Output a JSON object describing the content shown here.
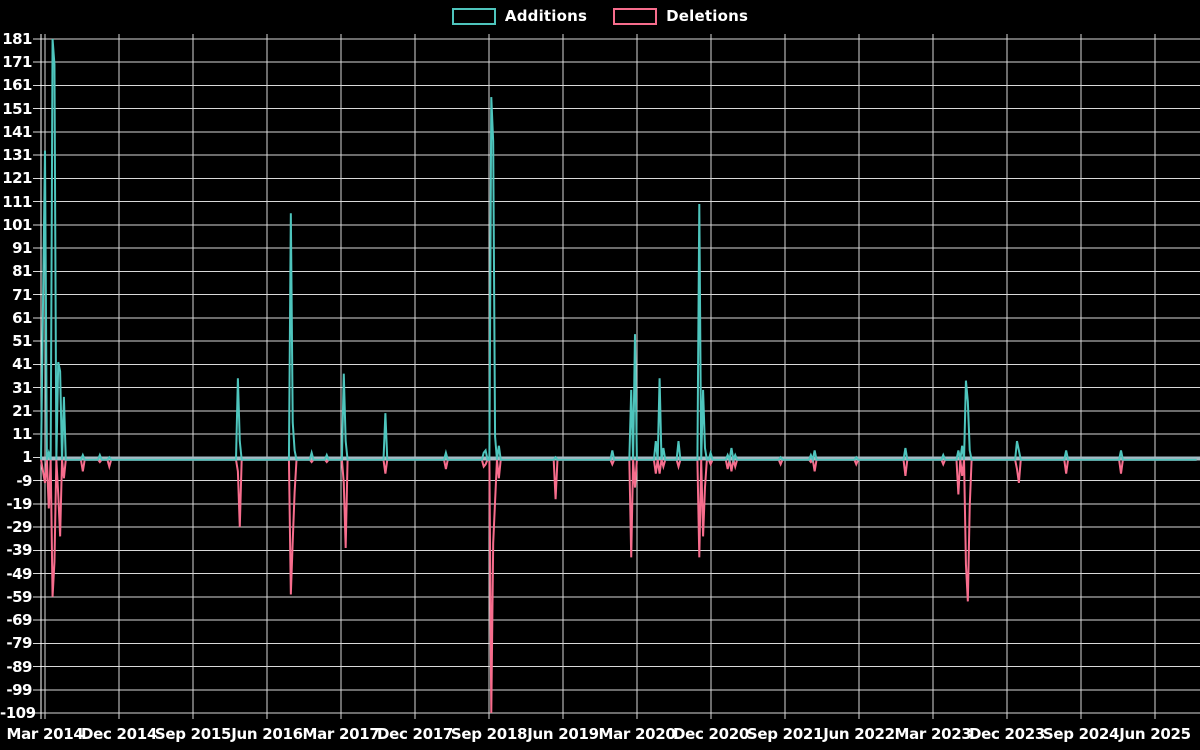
{
  "legend": {
    "items": [
      {
        "label": "Additions",
        "color": "#4EC5BD"
      },
      {
        "label": "Deletions",
        "color": "#F76D8D"
      }
    ]
  },
  "colors": {
    "background": "#000000",
    "additions": "#4EC5BD",
    "deletions": "#F76D8D",
    "gridline": "#D9D9D9",
    "axis": "#FFFFFF",
    "baseline": "#A5BCC6",
    "label_text": "#FFFFFF"
  },
  "chart_data": {
    "type": "line",
    "title": "",
    "xlabel": "",
    "ylabel": "",
    "grid": true,
    "legend_position": "top-center",
    "x_axis": {
      "tick_labels": [
        "Mar 2014",
        "Dec 2014",
        "Sep 2015",
        "Jun 2016",
        "Mar 2017",
        "Dec 2017",
        "Sep 2018",
        "Jun 2019",
        "Mar 2020",
        "Dec 2020",
        "Sep 2021",
        "Jun 2022",
        "Mar 2023",
        "Dec 2023",
        "Sep 2024",
        "Jun 2025"
      ],
      "months_between_ticks": 9,
      "start": "Mar 2014",
      "end": "Jun 2025"
    },
    "y_axis": {
      "min": -109,
      "max": 181,
      "step": 10,
      "tick_labels": [
        "181",
        "171",
        "161",
        "151",
        "141",
        "131",
        "121",
        "111",
        "101",
        "91",
        "81",
        "71",
        "61",
        "51",
        "41",
        "31",
        "21",
        "11",
        "1",
        "-9",
        "-19",
        "-29",
        "-39",
        "-49",
        "-59",
        "-69",
        "-79",
        "-89",
        "-99",
        "-109"
      ]
    },
    "series": [
      {
        "name": "Additions",
        "color": "#4EC5BD",
        "sign": "positive"
      },
      {
        "name": "Deletions",
        "color": "#F76D8D",
        "sign": "negative"
      }
    ],
    "resolution": "weekly",
    "weeks_total": 610,
    "baseline_value": 0,
    "spikes": [
      {
        "week": 0,
        "approx_date": "Mar 2014",
        "additions": 133,
        "deletions": -10
      },
      {
        "week": 2,
        "approx_date": "Mar 2014",
        "additions": 3,
        "deletions": -21
      },
      {
        "week": 4,
        "approx_date": "Apr 2014",
        "additions": 181,
        "deletions": -59
      },
      {
        "week": 5,
        "approx_date": "Apr 2014",
        "additions": 170,
        "deletions": -44
      },
      {
        "week": 7,
        "approx_date": "Apr 2014",
        "additions": 42,
        "deletions": -15
      },
      {
        "week": 8,
        "approx_date": "May 2014",
        "additions": 38,
        "deletions": -33
      },
      {
        "week": 10,
        "approx_date": "May 2014",
        "additions": 27,
        "deletions": -8
      },
      {
        "week": 20,
        "approx_date": "Jul 2014",
        "additions": 2,
        "deletions": -5
      },
      {
        "week": 29,
        "approx_date": "Sep 2014",
        "additions": 2,
        "deletions": -1
      },
      {
        "week": 34,
        "approx_date": "Nov 2014",
        "additions": 1,
        "deletions": -3
      },
      {
        "week": 102,
        "approx_date": "Feb 2016",
        "additions": 35,
        "deletions": -5
      },
      {
        "week": 103,
        "approx_date": "Mar 2016",
        "additions": 8,
        "deletions": -29
      },
      {
        "week": 130,
        "approx_date": "Sep 2016",
        "additions": 106,
        "deletions": -58
      },
      {
        "week": 131,
        "approx_date": "Sep 2016",
        "additions": 16,
        "deletions": -35
      },
      {
        "week": 132,
        "approx_date": "Sep 2016",
        "additions": 4,
        "deletions": -14
      },
      {
        "week": 141,
        "approx_date": "Nov 2016",
        "additions": 3,
        "deletions": -1
      },
      {
        "week": 149,
        "approx_date": "Jan 2017",
        "additions": 2,
        "deletions": -1
      },
      {
        "week": 158,
        "approx_date": "Mar 2017",
        "additions": 37,
        "deletions": -10
      },
      {
        "week": 159,
        "approx_date": "Mar 2017",
        "additions": 8,
        "deletions": -38
      },
      {
        "week": 180,
        "approx_date": "Aug 2017",
        "additions": 20,
        "deletions": -6
      },
      {
        "week": 212,
        "approx_date": "Apr 2018",
        "additions": 3,
        "deletions": -4
      },
      {
        "week": 232,
        "approx_date": "Aug 2018",
        "additions": 3,
        "deletions": -3
      },
      {
        "week": 233,
        "approx_date": "Aug 2018",
        "additions": 4,
        "deletions": -2
      },
      {
        "week": 236,
        "approx_date": "Sep 2018",
        "additions": 156,
        "deletions": -109
      },
      {
        "week": 237,
        "approx_date": "Sep 2018",
        "additions": 137,
        "deletions": -36
      },
      {
        "week": 238,
        "approx_date": "Sep 2018",
        "additions": 10,
        "deletions": -18
      },
      {
        "week": 240,
        "approx_date": "Oct 2018",
        "additions": 6,
        "deletions": -8
      },
      {
        "week": 270,
        "approx_date": "Apr 2019",
        "additions": 1,
        "deletions": -17
      },
      {
        "week": 300,
        "approx_date": "Nov 2019",
        "additions": 4,
        "deletions": -2
      },
      {
        "week": 310,
        "approx_date": "Feb 2020",
        "additions": 30,
        "deletions": -42
      },
      {
        "week": 312,
        "approx_date": "Mar 2020",
        "additions": 54,
        "deletions": -12
      },
      {
        "week": 323,
        "approx_date": "May 2020",
        "additions": 8,
        "deletions": -6
      },
      {
        "week": 325,
        "approx_date": "Jun 2020",
        "additions": 35,
        "deletions": -6
      },
      {
        "week": 327,
        "approx_date": "Jun 2020",
        "additions": 5,
        "deletions": -3
      },
      {
        "week": 335,
        "approx_date": "Aug 2020",
        "additions": 8,
        "deletions": -3
      },
      {
        "week": 346,
        "approx_date": "Nov 2020",
        "additions": 110,
        "deletions": -42
      },
      {
        "week": 348,
        "approx_date": "Nov 2020",
        "additions": 30,
        "deletions": -33
      },
      {
        "week": 349,
        "approx_date": "Dec 2020",
        "additions": 5,
        "deletions": -12
      },
      {
        "week": 352,
        "approx_date": "Dec 2020",
        "additions": 3,
        "deletions": -2
      },
      {
        "week": 361,
        "approx_date": "Feb 2021",
        "additions": 2,
        "deletions": -4
      },
      {
        "week": 363,
        "approx_date": "Mar 2021",
        "additions": 5,
        "deletions": -5
      },
      {
        "week": 365,
        "approx_date": "Mar 2021",
        "additions": 2,
        "deletions": -3
      },
      {
        "week": 389,
        "approx_date": "Aug 2021",
        "additions": 1,
        "deletions": -2
      },
      {
        "week": 405,
        "approx_date": "Dec 2021",
        "additions": 2,
        "deletions": -1
      },
      {
        "week": 407,
        "approx_date": "Jan 2022",
        "additions": 4,
        "deletions": -5
      },
      {
        "week": 429,
        "approx_date": "May 2022",
        "additions": 1,
        "deletions": -2
      },
      {
        "week": 455,
        "approx_date": "Nov 2022",
        "additions": 5,
        "deletions": -7
      },
      {
        "week": 475,
        "approx_date": "Apr 2023",
        "additions": 2,
        "deletions": -2
      },
      {
        "week": 483,
        "approx_date": "Jun 2023",
        "additions": 4,
        "deletions": -15
      },
      {
        "week": 485,
        "approx_date": "Jul 2023",
        "additions": 6,
        "deletions": -7
      },
      {
        "week": 487,
        "approx_date": "Jul 2023",
        "additions": 34,
        "deletions": -45
      },
      {
        "week": 488,
        "approx_date": "Jul 2023",
        "additions": 25,
        "deletions": -61
      },
      {
        "week": 489,
        "approx_date": "Aug 2023",
        "additions": 4,
        "deletions": -20
      },
      {
        "week": 514,
        "approx_date": "Jan 2024",
        "additions": 8,
        "deletions": -4
      },
      {
        "week": 515,
        "approx_date": "Jan 2024",
        "additions": 4,
        "deletions": -10
      },
      {
        "week": 540,
        "approx_date": "Jul 2024",
        "additions": 4,
        "deletions": -6
      },
      {
        "week": 569,
        "approx_date": "Jan 2025",
        "additions": 4,
        "deletions": -6
      }
    ]
  }
}
